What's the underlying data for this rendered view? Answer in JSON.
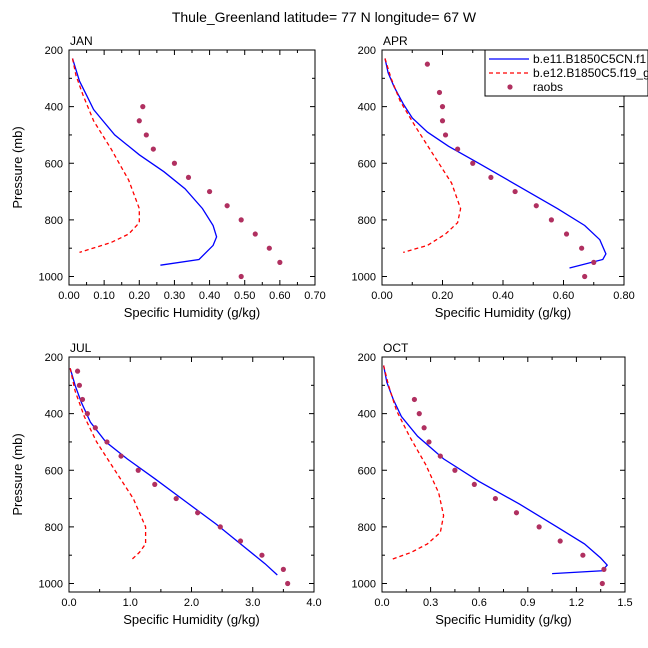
{
  "title": "Thule_Greenland  latitude= 77 N longitude= 67 W",
  "legend": {
    "entries": [
      {
        "label": "b.e11.B1850C5CN.f1",
        "color": "#0000ff",
        "style": "solid"
      },
      {
        "label": "b.e12.B1850C5.f19_g",
        "color": "#ff0000",
        "style": "dashed"
      },
      {
        "label": "raobs",
        "color": "#b03060",
        "style": "marker"
      }
    ],
    "placement": "top-right of APR panel"
  },
  "chart_data": [
    {
      "type": "line",
      "title": "JAN",
      "xlabel": "Specific Humidity (g/kg)",
      "ylabel": "Pressure (mb)",
      "xlim": [
        0,
        0.7
      ],
      "ylim": [
        1030,
        200
      ],
      "y_reversed": true,
      "xticks": [
        0,
        0.1,
        0.2,
        0.3,
        0.4,
        0.5,
        0.6,
        0.7
      ],
      "xtick_labels": [
        "0.00",
        "0.10",
        "0.20",
        "0.30",
        "0.40",
        "0.50",
        "0.60",
        "0.70"
      ],
      "yticks": [
        200,
        400,
        600,
        800,
        1000
      ],
      "series": [
        {
          "name": "b.e11.B1850C5CN.f1",
          "color": "#0000ff",
          "style": "solid",
          "points": [
            [
              0.01,
              230
            ],
            [
              0.02,
              270
            ],
            [
              0.03,
              310
            ],
            [
              0.05,
              360
            ],
            [
              0.07,
              410
            ],
            [
              0.09,
              440
            ],
            [
              0.13,
              500
            ],
            [
              0.2,
              570
            ],
            [
              0.27,
              630
            ],
            [
              0.33,
              690
            ],
            [
              0.38,
              760
            ],
            [
              0.41,
              820
            ],
            [
              0.42,
              860
            ],
            [
              0.41,
              890
            ],
            [
              0.37,
              940
            ],
            [
              0.26,
              960
            ]
          ]
        },
        {
          "name": "b.e12.B1850C5.f19_g",
          "color": "#ff0000",
          "style": "dashed",
          "points": [
            [
              0.01,
              230
            ],
            [
              0.02,
              290
            ],
            [
              0.04,
              360
            ],
            [
              0.07,
              450
            ],
            [
              0.12,
              550
            ],
            [
              0.17,
              660
            ],
            [
              0.2,
              760
            ],
            [
              0.2,
              810
            ],
            [
              0.17,
              850
            ],
            [
              0.12,
              880
            ],
            [
              0.03,
              915
            ]
          ]
        },
        {
          "name": "raobs",
          "color": "#b03060",
          "style": "marker",
          "points": [
            [
              0.21,
              400
            ],
            [
              0.2,
              450
            ],
            [
              0.22,
              500
            ],
            [
              0.24,
              550
            ],
            [
              0.3,
              600
            ],
            [
              0.34,
              650
            ],
            [
              0.4,
              700
            ],
            [
              0.45,
              750
            ],
            [
              0.49,
              800
            ],
            [
              0.53,
              850
            ],
            [
              0.57,
              900
            ],
            [
              0.6,
              950
            ],
            [
              0.49,
              1000
            ]
          ]
        }
      ]
    },
    {
      "type": "line",
      "title": "APR",
      "xlabel": "Specific Humidity (g/kg)",
      "ylabel": "",
      "xlim": [
        0,
        0.8
      ],
      "ylim": [
        1030,
        200
      ],
      "y_reversed": true,
      "xticks": [
        0,
        0.2,
        0.4,
        0.6,
        0.8
      ],
      "xtick_labels": [
        "0.00",
        "0.20",
        "0.40",
        "0.60",
        "0.80"
      ],
      "yticks": [
        200,
        400,
        600,
        800,
        1000
      ],
      "series": [
        {
          "name": "b.e11.B1850C5CN.f1",
          "color": "#0000ff",
          "style": "solid",
          "points": [
            [
              0.01,
              230
            ],
            [
              0.02,
              280
            ],
            [
              0.04,
              330
            ],
            [
              0.07,
              390
            ],
            [
              0.1,
              440
            ],
            [
              0.15,
              490
            ],
            [
              0.22,
              540
            ],
            [
              0.32,
              600
            ],
            [
              0.45,
              680
            ],
            [
              0.58,
              760
            ],
            [
              0.67,
              820
            ],
            [
              0.72,
              870
            ],
            [
              0.74,
              920
            ],
            [
              0.73,
              940
            ],
            [
              0.62,
              970
            ]
          ]
        },
        {
          "name": "b.e12.B1850C5.f19_g",
          "color": "#ff0000",
          "style": "dashed",
          "points": [
            [
              0.01,
              230
            ],
            [
              0.03,
              300
            ],
            [
              0.06,
              380
            ],
            [
              0.11,
              470
            ],
            [
              0.17,
              570
            ],
            [
              0.23,
              670
            ],
            [
              0.26,
              760
            ],
            [
              0.25,
              810
            ],
            [
              0.21,
              850
            ],
            [
              0.15,
              890
            ],
            [
              0.07,
              915
            ]
          ]
        },
        {
          "name": "raobs",
          "color": "#b03060",
          "style": "marker",
          "points": [
            [
              0.15,
              250
            ],
            [
              0.19,
              350
            ],
            [
              0.2,
              400
            ],
            [
              0.2,
              450
            ],
            [
              0.21,
              500
            ],
            [
              0.25,
              550
            ],
            [
              0.3,
              600
            ],
            [
              0.36,
              650
            ],
            [
              0.44,
              700
            ],
            [
              0.51,
              750
            ],
            [
              0.56,
              800
            ],
            [
              0.61,
              850
            ],
            [
              0.66,
              900
            ],
            [
              0.7,
              950
            ],
            [
              0.67,
              1000
            ]
          ]
        }
      ]
    },
    {
      "type": "line",
      "title": "JUL",
      "xlabel": "Specific Humidity (g/kg)",
      "ylabel": "Pressure (mb)",
      "xlim": [
        0,
        4
      ],
      "ylim": [
        1030,
        200
      ],
      "y_reversed": true,
      "xticks": [
        0,
        1,
        2,
        3,
        4
      ],
      "xtick_labels": [
        "0.0",
        "1.0",
        "2.0",
        "3.0",
        "4.0"
      ],
      "yticks": [
        200,
        400,
        600,
        800,
        1000
      ],
      "series": [
        {
          "name": "b.e11.B1850C5CN.f1",
          "color": "#0000ff",
          "style": "solid",
          "points": [
            [
              0.02,
              240
            ],
            [
              0.1,
              300
            ],
            [
              0.2,
              360
            ],
            [
              0.35,
              430
            ],
            [
              0.6,
              500
            ],
            [
              0.95,
              560
            ],
            [
              1.4,
              630
            ],
            [
              1.9,
              710
            ],
            [
              2.4,
              790
            ],
            [
              2.8,
              860
            ],
            [
              3.2,
              930
            ],
            [
              3.4,
              970
            ]
          ]
        },
        {
          "name": "b.e12.B1850C5.f19_g",
          "color": "#ff0000",
          "style": "dashed",
          "points": [
            [
              0.02,
              240
            ],
            [
              0.1,
              320
            ],
            [
              0.25,
              410
            ],
            [
              0.45,
              500
            ],
            [
              0.75,
              600
            ],
            [
              1.05,
              700
            ],
            [
              1.25,
              800
            ],
            [
              1.25,
              860
            ],
            [
              1.15,
              890
            ],
            [
              1.0,
              920
            ]
          ]
        },
        {
          "name": "raobs",
          "color": "#b03060",
          "style": "marker",
          "points": [
            [
              0.14,
              250
            ],
            [
              0.17,
              300
            ],
            [
              0.22,
              350
            ],
            [
              0.3,
              400
            ],
            [
              0.43,
              450
            ],
            [
              0.62,
              500
            ],
            [
              0.85,
              550
            ],
            [
              1.13,
              600
            ],
            [
              1.4,
              650
            ],
            [
              1.75,
              700
            ],
            [
              2.1,
              750
            ],
            [
              2.47,
              800
            ],
            [
              2.8,
              850
            ],
            [
              3.15,
              900
            ],
            [
              3.5,
              950
            ],
            [
              3.57,
              1000
            ]
          ]
        }
      ]
    },
    {
      "type": "line",
      "title": "OCT",
      "xlabel": "Specific Humidity (g/kg)",
      "ylabel": "",
      "xlim": [
        0,
        1.5
      ],
      "ylim": [
        1030,
        200
      ],
      "y_reversed": true,
      "xticks": [
        0,
        0.3,
        0.6,
        0.9,
        1.2,
        1.5
      ],
      "xtick_labels": [
        "0.0",
        "0.3",
        "0.6",
        "0.9",
        "1.2",
        "1.5"
      ],
      "yticks": [
        200,
        400,
        600,
        800,
        1000
      ],
      "series": [
        {
          "name": "b.e11.B1850C5CN.f1",
          "color": "#0000ff",
          "style": "solid",
          "points": [
            [
              0.01,
              230
            ],
            [
              0.03,
              290
            ],
            [
              0.07,
              350
            ],
            [
              0.12,
              410
            ],
            [
              0.22,
              480
            ],
            [
              0.38,
              560
            ],
            [
              0.6,
              640
            ],
            [
              0.85,
              720
            ],
            [
              1.08,
              800
            ],
            [
              1.25,
              860
            ],
            [
              1.35,
              910
            ],
            [
              1.39,
              935
            ],
            [
              1.36,
              955
            ],
            [
              1.05,
              965
            ]
          ]
        },
        {
          "name": "b.e12.B1850C5.f19_g",
          "color": "#ff0000",
          "style": "dashed",
          "points": [
            [
              0.01,
              230
            ],
            [
              0.04,
              300
            ],
            [
              0.09,
              390
            ],
            [
              0.17,
              480
            ],
            [
              0.27,
              580
            ],
            [
              0.35,
              680
            ],
            [
              0.38,
              760
            ],
            [
              0.36,
              820
            ],
            [
              0.28,
              860
            ],
            [
              0.18,
              890
            ],
            [
              0.06,
              915
            ]
          ]
        },
        {
          "name": "raobs",
          "color": "#b03060",
          "style": "marker",
          "points": [
            [
              0.2,
              350
            ],
            [
              0.23,
              400
            ],
            [
              0.26,
              450
            ],
            [
              0.29,
              500
            ],
            [
              0.36,
              550
            ],
            [
              0.45,
              600
            ],
            [
              0.57,
              650
            ],
            [
              0.7,
              700
            ],
            [
              0.83,
              750
            ],
            [
              0.97,
              800
            ],
            [
              1.1,
              850
            ],
            [
              1.24,
              900
            ],
            [
              1.37,
              950
            ],
            [
              1.36,
              1000
            ]
          ]
        }
      ]
    }
  ]
}
